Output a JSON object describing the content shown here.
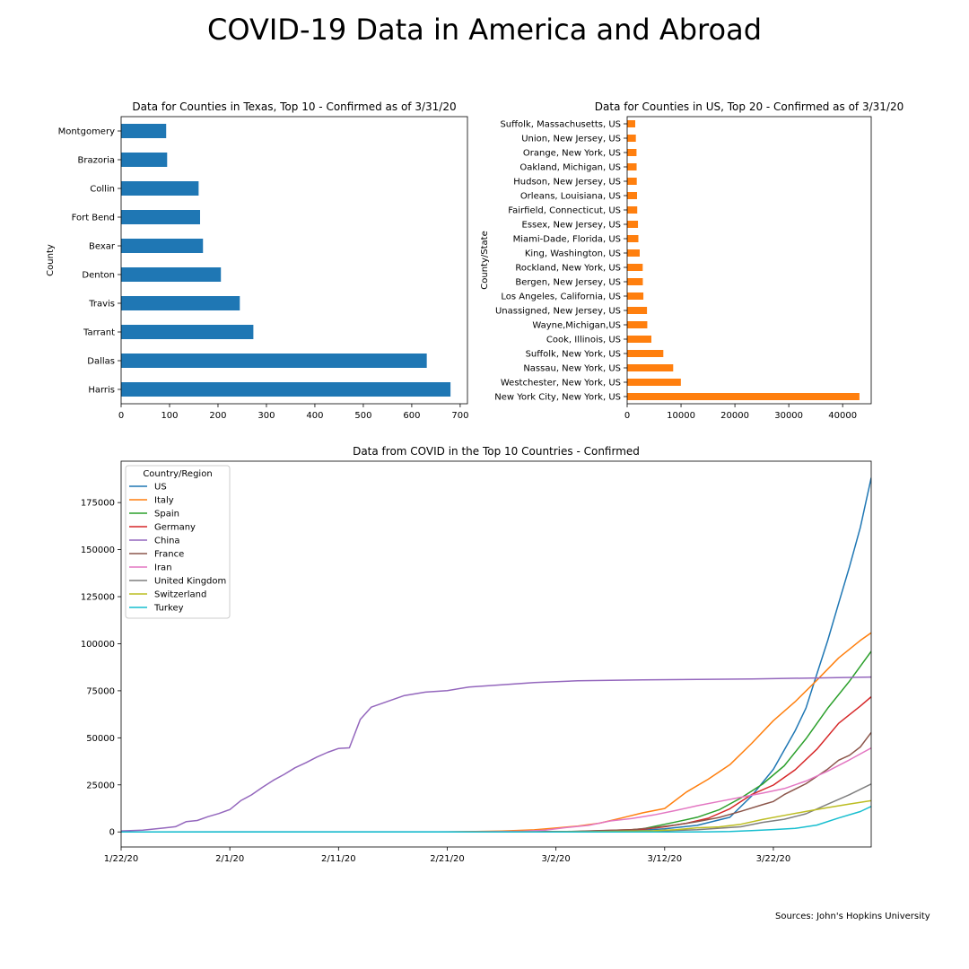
{
  "figure": {
    "suptitle": "COVID-19 Data in America and Abroad",
    "source": "Sources: John's Hopkins University"
  },
  "chart_data": [
    {
      "type": "bar",
      "orientation": "horizontal",
      "title": "Data for Counties in Texas, Top 10 - Confirmed as of 3/31/20",
      "ylabel": "County",
      "xlabel": "",
      "color": "#1f77b4",
      "categories": [
        "Harris",
        "Dallas",
        "Tarrant",
        "Travis",
        "Denton",
        "Bexar",
        "Fort Bend",
        "Collin",
        "Brazoria",
        "Montgomery"
      ],
      "values": [
        680,
        631,
        273,
        245,
        206,
        169,
        163,
        160,
        95,
        93
      ],
      "xlim": [
        0,
        715
      ],
      "xticks": [
        0,
        100,
        200,
        300,
        400,
        500,
        600,
        700
      ],
      "grid": false
    },
    {
      "type": "bar",
      "orientation": "horizontal",
      "title": "Data for Counties in US, Top 20 - Confirmed as of 3/31/20",
      "ylabel": "County/State",
      "xlabel": "",
      "color": "#ff7f0e",
      "categories": [
        "New York City, New York, US",
        "Westchester, New York, US",
        "Nassau, New York, US",
        "Suffolk, New York, US",
        "Cook, Illinois, US",
        "Wayne,Michigan,US",
        "Unassigned, New Jersey, US",
        "Los Angeles, California, US",
        "Bergen, New Jersey, US",
        "Rockland, New York, US",
        "King, Washington, US",
        "Miami-Dade, Florida, US",
        "Essex, New Jersey, US",
        "Fairfield, Connecticut, US",
        "Orleans, Louisiana, US",
        "Hudson, New Jersey, US",
        "Oakland, Michigan, US",
        "Orange, New York, US",
        "Union, New Jersey, US",
        "Suffolk, Massachusetts, US"
      ],
      "values": [
        43119,
        9967,
        8544,
        6713,
        4496,
        3735,
        3680,
        3011,
        2909,
        2887,
        2330,
        2081,
        2006,
        1870,
        1834,
        1783,
        1755,
        1736,
        1613,
        1499
      ],
      "xlim": [
        0,
        45300
      ],
      "xticks": [
        0,
        10000,
        20000,
        30000,
        40000
      ],
      "grid": false
    },
    {
      "type": "line",
      "title": "Data from COVID in the Top 10 Countries - Confirmed",
      "xlabel": "",
      "ylabel": "",
      "x_start": "1/22/20",
      "x_end": "3/31/20",
      "xticks": [
        "1/22/20",
        "2/1/20",
        "2/11/20",
        "2/21/20",
        "3/2/20",
        "3/12/20",
        "3/22/20"
      ],
      "ylim": [
        -8000,
        197000
      ],
      "yticks": [
        0,
        25000,
        50000,
        75000,
        100000,
        125000,
        150000,
        175000
      ],
      "legend_title": "Country/Region",
      "legend_position": "upper left",
      "grid": false,
      "series": [
        {
          "name": "US",
          "color": "#1f77b4",
          "keypoints": [
            [
              "1/22/20",
              1
            ],
            [
              "2/29/20",
              68
            ],
            [
              "3/2/20",
              100
            ],
            [
              "3/9/20",
              600
            ],
            [
              "3/12/20",
              1663
            ],
            [
              "3/15/20",
              3500
            ],
            [
              "3/18/20",
              7786
            ],
            [
              "3/20/20",
              19100
            ],
            [
              "3/22/20",
              33276
            ],
            [
              "3/24/20",
              53740
            ],
            [
              "3/25/20",
              65778
            ],
            [
              "3/26/20",
              83836
            ],
            [
              "3/27/20",
              101657
            ],
            [
              "3/28/20",
              121478
            ],
            [
              "3/29/20",
              140886
            ],
            [
              "3/30/20",
              161807
            ],
            [
              "3/31/20",
              188172
            ]
          ]
        },
        {
          "name": "Italy",
          "color": "#ff7f0e",
          "keypoints": [
            [
              "1/22/20",
              0
            ],
            [
              "2/20/20",
              3
            ],
            [
              "2/21/20",
              20
            ],
            [
              "2/23/20",
              155
            ],
            [
              "2/26/20",
              453
            ],
            [
              "2/29/20",
              1128
            ],
            [
              "3/2/20",
              2036
            ],
            [
              "3/4/20",
              3089
            ],
            [
              "3/6/20",
              4636
            ],
            [
              "3/8/20",
              7375
            ],
            [
              "3/10/20",
              10149
            ],
            [
              "3/12/20",
              12462
            ],
            [
              "3/14/20",
              21157
            ],
            [
              "3/16/20",
              27980
            ],
            [
              "3/18/20",
              35713
            ],
            [
              "3/20/20",
              47021
            ],
            [
              "3/22/20",
              59138
            ],
            [
              "3/24/20",
              69176
            ],
            [
              "3/26/20",
              80589
            ],
            [
              "3/28/20",
              92472
            ],
            [
              "3/30/20",
              101739
            ],
            [
              "3/31/20",
              105792
            ]
          ]
        },
        {
          "name": "Spain",
          "color": "#2ca02c",
          "keypoints": [
            [
              "1/22/20",
              0
            ],
            [
              "2/25/20",
              6
            ],
            [
              "3/1/20",
              84
            ],
            [
              "3/5/20",
              282
            ],
            [
              "3/8/20",
              673
            ],
            [
              "3/10/20",
              1695
            ],
            [
              "3/13/20",
              5232
            ],
            [
              "3/15/20",
              7798
            ],
            [
              "3/17/20",
              11748
            ],
            [
              "3/19/20",
              17963
            ],
            [
              "3/21/20",
              25374
            ],
            [
              "3/23/20",
              35136
            ],
            [
              "3/25/20",
              49515
            ],
            [
              "3/27/20",
              65719
            ],
            [
              "3/29/20",
              80110
            ],
            [
              "3/31/20",
              95923
            ]
          ]
        },
        {
          "name": "Germany",
          "color": "#d62728",
          "keypoints": [
            [
              "1/22/20",
              0
            ],
            [
              "1/27/20",
              1
            ],
            [
              "2/1/20",
              10
            ],
            [
              "2/26/20",
              27
            ],
            [
              "3/1/20",
              130
            ],
            [
              "3/4/20",
              262
            ],
            [
              "3/7/20",
              799
            ],
            [
              "3/10/20",
              1457
            ],
            [
              "3/12/20",
              2745
            ],
            [
              "3/14/20",
              4585
            ],
            [
              "3/16/20",
              7272
            ],
            [
              "3/18/20",
              12327
            ],
            [
              "3/20/20",
              19848
            ],
            [
              "3/22/20",
              24873
            ],
            [
              "3/24/20",
              32986
            ],
            [
              "3/26/20",
              43938
            ],
            [
              "3/28/20",
              57695
            ],
            [
              "3/30/20",
              66885
            ],
            [
              "3/31/20",
              71808
            ]
          ]
        },
        {
          "name": "China",
          "color": "#9467bd",
          "keypoints": [
            [
              "1/22/20",
              548
            ],
            [
              "1/24/20",
              916
            ],
            [
              "1/26/20",
              2116
            ],
            [
              "1/27/20",
              2782
            ],
            [
              "1/28/20",
              5512
            ],
            [
              "1/29/20",
              6070
            ],
            [
              "1/30/20",
              8124
            ],
            [
              "1/31/20",
              9783
            ],
            [
              "2/1/20",
              11871
            ],
            [
              "2/2/20",
              16607
            ],
            [
              "2/3/20",
              19693
            ],
            [
              "2/4/20",
              23680
            ],
            [
              "2/5/20",
              27409
            ],
            [
              "2/6/20",
              30553
            ],
            [
              "2/7/20",
              34075
            ],
            [
              "2/8/20",
              36778
            ],
            [
              "2/9/20",
              39790
            ],
            [
              "2/10/20",
              42306
            ],
            [
              "2/11/20",
              44327
            ],
            [
              "2/12/20",
              44699
            ],
            [
              "2/13/20",
              59832
            ],
            [
              "2/14/20",
              66292
            ],
            [
              "2/15/20",
              68347
            ],
            [
              "2/17/20",
              72364
            ],
            [
              "2/19/20",
              74280
            ],
            [
              "2/21/20",
              75077
            ],
            [
              "2/23/20",
              76936
            ],
            [
              "2/26/20",
              78166
            ],
            [
              "2/29/20",
              79356
            ],
            [
              "3/4/20",
              80270
            ],
            [
              "3/10/20",
              80754
            ],
            [
              "3/20/20",
              81250
            ],
            [
              "3/31/20",
              82279
            ]
          ]
        },
        {
          "name": "France",
          "color": "#8c564b",
          "keypoints": [
            [
              "1/22/20",
              0
            ],
            [
              "1/24/20",
              2
            ],
            [
              "2/1/20",
              6
            ],
            [
              "2/26/20",
              18
            ],
            [
              "2/29/20",
              100
            ],
            [
              "3/3/20",
              212
            ],
            [
              "3/6/20",
              653
            ],
            [
              "3/9/20",
              1209
            ],
            [
              "3/11/20",
              2284
            ],
            [
              "3/13/20",
              3661
            ],
            [
              "3/15/20",
              5423
            ],
            [
              "3/17/20",
              7699
            ],
            [
              "3/19/20",
              10947
            ],
            [
              "3/21/20",
              14459
            ],
            [
              "3/22/20",
              16176
            ],
            [
              "3/23/20",
              19856
            ],
            [
              "3/25/20",
              25600
            ],
            [
              "3/27/20",
              33402
            ],
            [
              "3/28/20",
              38105
            ],
            [
              "3/29/20",
              40708
            ],
            [
              "3/30/20",
              45170
            ],
            [
              "3/31/20",
              52827
            ]
          ]
        },
        {
          "name": "Iran",
          "color": "#e377c2",
          "keypoints": [
            [
              "1/22/20",
              0
            ],
            [
              "2/19/20",
              2
            ],
            [
              "2/22/20",
              28
            ],
            [
              "2/25/20",
              95
            ],
            [
              "2/28/20",
              388
            ],
            [
              "3/1/20",
              978
            ],
            [
              "3/3/20",
              2336
            ],
            [
              "3/5/20",
              3513
            ],
            [
              "3/7/20",
              5823
            ],
            [
              "3/9/20",
              7161
            ],
            [
              "3/11/20",
              9000
            ],
            [
              "3/13/20",
              11364
            ],
            [
              "3/15/20",
              13938
            ],
            [
              "3/17/20",
              16169
            ],
            [
              "3/19/20",
              18407
            ],
            [
              "3/21/20",
              20610
            ],
            [
              "3/23/20",
              23049
            ],
            [
              "3/25/20",
              27017
            ],
            [
              "3/27/20",
              32332
            ],
            [
              "3/29/20",
              38309
            ],
            [
              "3/31/20",
              44605
            ]
          ]
        },
        {
          "name": "United Kingdom",
          "color": "#7f7f7f",
          "keypoints": [
            [
              "1/22/20",
              0
            ],
            [
              "1/31/20",
              2
            ],
            [
              "2/20/20",
              9
            ],
            [
              "3/1/20",
              36
            ],
            [
              "3/5/20",
              116
            ],
            [
              "3/8/20",
              273
            ],
            [
              "3/11/20",
              459
            ],
            [
              "3/13/20",
              802
            ],
            [
              "3/15/20",
              1144
            ],
            [
              "3/17/20",
              1960
            ],
            [
              "3/19/20",
              2716
            ],
            [
              "3/21/20",
              5067
            ],
            [
              "3/23/20",
              6726
            ],
            [
              "3/25/20",
              9640
            ],
            [
              "3/27/20",
              14745
            ],
            [
              "3/29/20",
              19780
            ],
            [
              "3/31/20",
              25481
            ]
          ]
        },
        {
          "name": "Switzerland",
          "color": "#bcbd22",
          "keypoints": [
            [
              "1/22/20",
              0
            ],
            [
              "2/25/20",
              1
            ],
            [
              "3/1/20",
              42
            ],
            [
              "3/5/20",
              90
            ],
            [
              "3/8/20",
              337
            ],
            [
              "3/11/20",
              652
            ],
            [
              "3/13/20",
              1139
            ],
            [
              "3/15/20",
              2200
            ],
            [
              "3/17/20",
              2700
            ],
            [
              "3/19/20",
              4075
            ],
            [
              "3/21/20",
              6575
            ],
            [
              "3/23/20",
              8795
            ],
            [
              "3/25/20",
              10897
            ],
            [
              "3/27/20",
              12928
            ],
            [
              "3/29/20",
              14829
            ],
            [
              "3/31/20",
              16605
            ]
          ]
        },
        {
          "name": "Turkey",
          "color": "#17becf",
          "keypoints": [
            [
              "1/22/20",
              0
            ],
            [
              "3/10/20",
              0
            ],
            [
              "3/11/20",
              1
            ],
            [
              "3/14/20",
              6
            ],
            [
              "3/16/20",
              47
            ],
            [
              "3/18/20",
              191
            ],
            [
              "3/20/20",
              670
            ],
            [
              "3/22/20",
              1236
            ],
            [
              "3/24/20",
              1872
            ],
            [
              "3/26/20",
              3629
            ],
            [
              "3/28/20",
              7402
            ],
            [
              "3/30/20",
              10827
            ],
            [
              "3/31/20",
              13531
            ]
          ]
        }
      ]
    }
  ]
}
